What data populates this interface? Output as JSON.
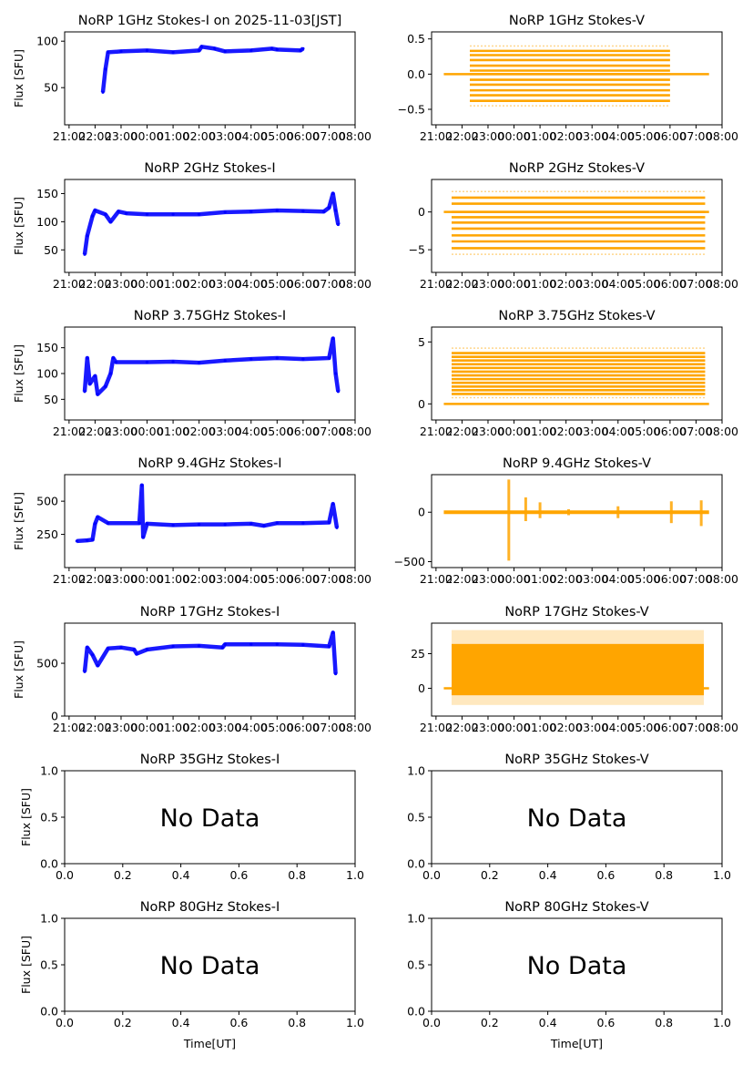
{
  "figure": {
    "date_label": "2025-11-03[JST]",
    "colors": {
      "stokes_i": "#0000ff",
      "stokes_v": "#ffa500",
      "axis": "#000000"
    }
  },
  "chart_data": [
    {
      "id": "i-1ghz",
      "type": "scatter",
      "title": "NoRP 1GHz Stokes-I on 2025-11-03[JST]",
      "ylabel": "Flux [SFU]",
      "xlabel": "",
      "ylim": [
        10,
        110
      ],
      "xlim_hours": [
        -3.17,
        8.0
      ],
      "yticks": [
        50,
        100
      ],
      "xticks": [
        "21:00",
        "22:00",
        "23:00",
        "00:00",
        "01:00",
        "02:00",
        "03:00",
        "04:00",
        "05:00",
        "06:00",
        "07:00",
        "08:00"
      ],
      "series": [
        {
          "name": "Stokes-I",
          "color": "#0000ff",
          "points": [
            [
              -1.7,
              45
            ],
            [
              -1.6,
              70
            ],
            [
              -1.5,
              88
            ],
            [
              -1.0,
              89
            ],
            [
              0,
              90
            ],
            [
              1,
              88
            ],
            [
              2,
              90
            ],
            [
              2.1,
              94
            ],
            [
              2.6,
              92
            ],
            [
              3,
              89
            ],
            [
              4,
              90
            ],
            [
              4.8,
              92
            ],
            [
              5,
              91
            ],
            [
              5.9,
              90
            ],
            [
              6.0,
              92
            ]
          ]
        }
      ]
    },
    {
      "id": "v-1ghz",
      "type": "scatter",
      "title": "NoRP 1GHz Stokes-V",
      "ylabel": "",
      "xlabel": "",
      "ylim": [
        -0.72,
        0.6
      ],
      "xlim_hours": [
        -3.17,
        8.0
      ],
      "yticks": [
        -0.5,
        0.0,
        0.5
      ],
      "xticks": [
        "21:00",
        "22:00",
        "23:00",
        "00:00",
        "01:00",
        "02:00",
        "03:00",
        "04:00",
        "05:00",
        "06:00",
        "07:00",
        "08:00"
      ],
      "series": [
        {
          "name": "Stokes-V",
          "color": "#ffa500",
          "band": {
            "x_start": -1.7,
            "x_end": 6.0,
            "levels": [
              -0.45,
              -0.38,
              -0.3,
              -0.23,
              -0.15,
              -0.08,
              0.0,
              0.05,
              0.12,
              0.2,
              0.27,
              0.33,
              0.4
            ],
            "baseline_x": [
              -2.7,
              7.5
            ]
          }
        }
      ]
    },
    {
      "id": "i-2ghz",
      "type": "scatter",
      "title": "NoRP 2GHz Stokes-I",
      "ylabel": "Flux [SFU]",
      "xlabel": "",
      "ylim": [
        10,
        175
      ],
      "xlim_hours": [
        -3.17,
        8.0
      ],
      "yticks": [
        50,
        100,
        150
      ],
      "xticks": [
        "21:00",
        "22:00",
        "23:00",
        "00:00",
        "01:00",
        "02:00",
        "03:00",
        "04:00",
        "05:00",
        "06:00",
        "07:00",
        "08:00"
      ],
      "series": [
        {
          "name": "Stokes-I",
          "color": "#0000ff",
          "points": [
            [
              -2.4,
              42
            ],
            [
              -2.3,
              75
            ],
            [
              -2.1,
              110
            ],
            [
              -2.0,
              120
            ],
            [
              -1.6,
              113
            ],
            [
              -1.4,
              100
            ],
            [
              -1.1,
              118
            ],
            [
              -0.8,
              115
            ],
            [
              0,
              113
            ],
            [
              1,
              113
            ],
            [
              2,
              113
            ],
            [
              3,
              117
            ],
            [
              4,
              118
            ],
            [
              5,
              120
            ],
            [
              6,
              119
            ],
            [
              6.8,
              118
            ],
            [
              7.0,
              125
            ],
            [
              7.15,
              150
            ],
            [
              7.25,
              120
            ],
            [
              7.35,
              95
            ]
          ]
        }
      ]
    },
    {
      "id": "v-2ghz",
      "type": "scatter",
      "title": "NoRP 2GHz Stokes-V",
      "ylabel": "",
      "xlabel": "",
      "ylim": [
        -8,
        4.3
      ],
      "xlim_hours": [
        -3.17,
        8.0
      ],
      "yticks": [
        -5,
        0
      ],
      "xticks": [
        "21:00",
        "22:00",
        "23:00",
        "00:00",
        "01:00",
        "02:00",
        "03:00",
        "04:00",
        "05:00",
        "06:00",
        "07:00",
        "08:00"
      ],
      "series": [
        {
          "name": "Stokes-V",
          "color": "#ffa500",
          "band": {
            "x_start": -2.4,
            "x_end": 7.35,
            "levels": [
              -5.6,
              -4.8,
              -3.9,
              -3.1,
              -2.2,
              -1.4,
              -0.7,
              0.0,
              1.1,
              1.9,
              2.7
            ],
            "baseline_x": [
              -2.7,
              7.5
            ]
          }
        }
      ]
    },
    {
      "id": "i-375ghz",
      "type": "scatter",
      "title": "NoRP 3.75GHz Stokes-I",
      "ylabel": "Flux [SFU]",
      "xlabel": "",
      "ylim": [
        10,
        190
      ],
      "xlim_hours": [
        -3.17,
        8.0
      ],
      "yticks": [
        50,
        100,
        150
      ],
      "xticks": [
        "21:00",
        "22:00",
        "23:00",
        "00:00",
        "01:00",
        "02:00",
        "03:00",
        "04:00",
        "05:00",
        "06:00",
        "07:00",
        "08:00"
      ],
      "series": [
        {
          "name": "Stokes-I",
          "color": "#0000ff",
          "points": [
            [
              -2.4,
              65
            ],
            [
              -2.3,
              130
            ],
            [
              -2.2,
              80
            ],
            [
              -2.0,
              95
            ],
            [
              -1.9,
              60
            ],
            [
              -1.6,
              75
            ],
            [
              -1.4,
              100
            ],
            [
              -1.3,
              130
            ],
            [
              -1.2,
              122
            ],
            [
              0,
              122
            ],
            [
              1,
              123
            ],
            [
              2,
              121
            ],
            [
              3,
              125
            ],
            [
              4,
              128
            ],
            [
              5,
              130
            ],
            [
              6,
              128
            ],
            [
              7.0,
              130
            ],
            [
              7.15,
              168
            ],
            [
              7.25,
              100
            ],
            [
              7.35,
              65
            ]
          ]
        }
      ]
    },
    {
      "id": "v-375ghz",
      "type": "scatter",
      "title": "NoRP 3.75GHz Stokes-V",
      "ylabel": "",
      "xlabel": "",
      "ylim": [
        -1.3,
        6.2
      ],
      "xlim_hours": [
        -3.17,
        8.0
      ],
      "yticks": [
        0,
        5
      ],
      "xticks": [
        "21:00",
        "22:00",
        "23:00",
        "00:00",
        "01:00",
        "02:00",
        "03:00",
        "04:00",
        "05:00",
        "06:00",
        "07:00",
        "08:00"
      ],
      "series": [
        {
          "name": "Stokes-V",
          "color": "#ffa500",
          "band": {
            "x_start": -2.4,
            "x_end": 7.35,
            "levels": [
              0.5,
              0.8,
              1.1,
              1.4,
              1.7,
              2.0,
              2.3,
              2.6,
              2.9,
              3.2,
              3.5,
              3.8,
              4.1,
              4.5
            ],
            "baseline_x": [
              -2.7,
              7.5
            ]
          }
        }
      ]
    },
    {
      "id": "i-94ghz",
      "type": "scatter",
      "title": "NoRP 9.4GHz Stokes-I",
      "ylabel": "Flux [SFU]",
      "xlabel": "",
      "ylim": [
        0,
        700
      ],
      "xlim_hours": [
        -3.17,
        8.0
      ],
      "yticks": [
        250,
        500
      ],
      "xticks": [
        "21:00",
        "22:00",
        "23:00",
        "00:00",
        "01:00",
        "02:00",
        "03:00",
        "04:00",
        "05:00",
        "06:00",
        "07:00",
        "08:00"
      ],
      "series": [
        {
          "name": "Stokes-I",
          "color": "#0000ff",
          "points": [
            [
              -2.7,
              200
            ],
            [
              -2.3,
              205
            ],
            [
              -2.1,
              210
            ],
            [
              -2.0,
              330
            ],
            [
              -1.9,
              380
            ],
            [
              -1.5,
              335
            ],
            [
              -0.3,
              335
            ],
            [
              -0.2,
              620
            ],
            [
              -0.15,
              230
            ],
            [
              0,
              330
            ],
            [
              1,
              320
            ],
            [
              2,
              325
            ],
            [
              3,
              325
            ],
            [
              4,
              330
            ],
            [
              4.5,
              315
            ],
            [
              5,
              335
            ],
            [
              6,
              335
            ],
            [
              7.0,
              340
            ],
            [
              7.15,
              480
            ],
            [
              7.3,
              300
            ]
          ]
        }
      ]
    },
    {
      "id": "v-94ghz",
      "type": "scatter",
      "title": "NoRP 9.4GHz Stokes-V",
      "ylabel": "",
      "xlabel": "",
      "ylim": [
        -560,
        380
      ],
      "xlim_hours": [
        -3.17,
        8.0
      ],
      "yticks": [
        -500,
        0
      ],
      "xticks": [
        "21:00",
        "22:00",
        "23:00",
        "00:00",
        "01:00",
        "02:00",
        "03:00",
        "04:00",
        "05:00",
        "06:00",
        "07:00",
        "08:00"
      ],
      "series": [
        {
          "name": "Stokes-V",
          "color": "#ffa500",
          "spikes": [
            [
              -0.2,
              330,
              -490
            ],
            [
              0.45,
              150,
              -90
            ],
            [
              1.0,
              100,
              -60
            ],
            [
              2.1,
              30,
              -30
            ],
            [
              4.0,
              60,
              -60
            ],
            [
              6.05,
              110,
              -110
            ],
            [
              7.2,
              120,
              -140
            ]
          ],
          "baseline_x": [
            -2.7,
            7.5
          ]
        }
      ]
    },
    {
      "id": "i-17ghz",
      "type": "scatter",
      "title": "NoRP 17GHz Stokes-I",
      "ylabel": "Flux [SFU]",
      "xlabel": "",
      "ylim": [
        0,
        880
      ],
      "xlim_hours": [
        -3.17,
        8.0
      ],
      "yticks": [
        0,
        500
      ],
      "xticks": [
        "21:00",
        "22:00",
        "23:00",
        "00:00",
        "01:00",
        "02:00",
        "03:00",
        "04:00",
        "05:00",
        "06:00",
        "07:00",
        "08:00"
      ],
      "series": [
        {
          "name": "Stokes-I",
          "color": "#0000ff",
          "points": [
            [
              -2.4,
              420
            ],
            [
              -2.3,
              650
            ],
            [
              -2.1,
              580
            ],
            [
              -1.9,
              480
            ],
            [
              -1.5,
              640
            ],
            [
              -1,
              650
            ],
            [
              -0.5,
              630
            ],
            [
              -0.4,
              590
            ],
            [
              0,
              630
            ],
            [
              1,
              660
            ],
            [
              2,
              665
            ],
            [
              2.9,
              650
            ],
            [
              3,
              680
            ],
            [
              4,
              680
            ],
            [
              5,
              680
            ],
            [
              6,
              675
            ],
            [
              7.0,
              660
            ],
            [
              7.15,
              790
            ],
            [
              7.25,
              400
            ]
          ]
        }
      ]
    },
    {
      "id": "v-17ghz",
      "type": "scatter",
      "title": "NoRP 17GHz Stokes-V",
      "ylabel": "",
      "xlabel": "",
      "ylim": [
        -20,
        47
      ],
      "xlim_hours": [
        -3.17,
        8.0
      ],
      "yticks": [
        0,
        25
      ],
      "xticks": [
        "21:00",
        "22:00",
        "23:00",
        "00:00",
        "01:00",
        "02:00",
        "03:00",
        "04:00",
        "05:00",
        "06:00",
        "07:00",
        "08:00"
      ],
      "series": [
        {
          "name": "Stokes-V",
          "color": "#ffa500",
          "band_fill": {
            "x_start": -2.4,
            "x_end": 7.3,
            "core": [
              -5,
              32
            ],
            "scatter": [
              -12,
              42
            ]
          },
          "baseline_x": [
            -2.7,
            7.5
          ]
        }
      ]
    },
    {
      "id": "i-35ghz",
      "type": "empty",
      "title": "NoRP 35GHz Stokes-I",
      "annotation": "No Data",
      "ylabel": "Flux [SFU]",
      "xlabel": "",
      "ylim": [
        0,
        1
      ],
      "xlim": [
        0,
        1
      ],
      "yticks": [
        "0.0",
        "0.5",
        "1.0"
      ],
      "xticks": [
        "0.0",
        "0.2",
        "0.4",
        "0.6",
        "0.8",
        "1.0"
      ],
      "series": []
    },
    {
      "id": "v-35ghz",
      "type": "empty",
      "title": "NoRP 35GHz Stokes-V",
      "annotation": "No Data",
      "ylabel": "",
      "xlabel": "",
      "ylim": [
        0,
        1
      ],
      "xlim": [
        0,
        1
      ],
      "yticks": [
        "0.0",
        "0.5",
        "1.0"
      ],
      "xticks": [
        "0.0",
        "0.2",
        "0.4",
        "0.6",
        "0.8",
        "1.0"
      ],
      "series": []
    },
    {
      "id": "i-80ghz",
      "type": "empty",
      "title": "NoRP 80GHz Stokes-I",
      "annotation": "No Data",
      "ylabel": "Flux [SFU]",
      "xlabel": "Time[UT]",
      "ylim": [
        0,
        1
      ],
      "xlim": [
        0,
        1
      ],
      "yticks": [
        "0.0",
        "0.5",
        "1.0"
      ],
      "xticks": [
        "0.0",
        "0.2",
        "0.4",
        "0.6",
        "0.8",
        "1.0"
      ],
      "series": []
    },
    {
      "id": "v-80ghz",
      "type": "empty",
      "title": "NoRP 80GHz Stokes-V",
      "annotation": "No Data",
      "ylabel": "",
      "xlabel": "Time[UT]",
      "ylim": [
        0,
        1
      ],
      "xlim": [
        0,
        1
      ],
      "yticks": [
        "0.0",
        "0.5",
        "1.0"
      ],
      "xticks": [
        "0.0",
        "0.2",
        "0.4",
        "0.6",
        "0.8",
        "1.0"
      ],
      "series": []
    }
  ]
}
